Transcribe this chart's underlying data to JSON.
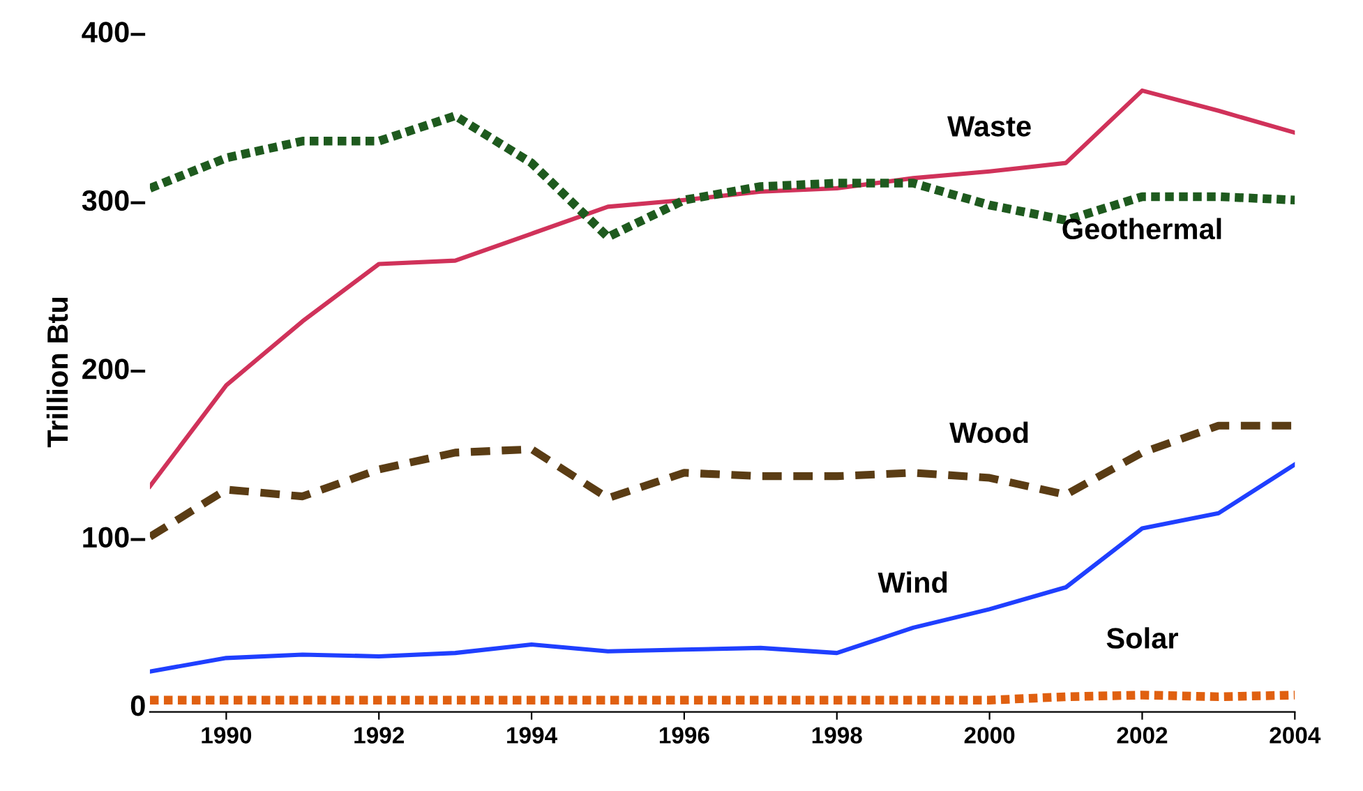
{
  "chart_data": {
    "type": "line",
    "ylabel": "Trillion Btu",
    "x": [
      1989,
      1990,
      1991,
      1992,
      1993,
      1994,
      1995,
      1996,
      1997,
      1998,
      1999,
      2000,
      2001,
      2002,
      2003,
      2004
    ],
    "xlim": [
      1989,
      2004
    ],
    "xticks": [
      1990,
      1992,
      1994,
      1996,
      1998,
      2000,
      2002,
      2004
    ],
    "ylim": [
      -4,
      400
    ],
    "yticks": [
      {
        "value": 0,
        "label": "0"
      },
      {
        "value": 100,
        "label": "100–"
      },
      {
        "value": 200,
        "label": "200–"
      },
      {
        "value": 300,
        "label": "300–"
      },
      {
        "value": 400,
        "label": "400–"
      }
    ],
    "grid": false,
    "legend": false,
    "marker": "none",
    "series": [
      {
        "name": "Waste",
        "color": "#d0325a",
        "line_style": "solid",
        "values": [
          130,
          190,
          228,
          262,
          264,
          280,
          296,
          300,
          305,
          307,
          313,
          317,
          322,
          365,
          353,
          340
        ]
      },
      {
        "name": "Geothermal",
        "color": "#1e5a1e",
        "line_style": "dotted",
        "values": [
          307,
          325,
          335,
          335,
          350,
          322,
          278,
          300,
          308,
          310,
          310,
          297,
          288,
          302,
          302,
          300
        ]
      },
      {
        "name": "Wood",
        "color": "#5a3c14",
        "line_style": "dashed",
        "values": [
          100,
          128,
          124,
          140,
          150,
          152,
          123,
          138,
          136,
          136,
          138,
          135,
          125,
          150,
          166,
          166
        ]
      },
      {
        "name": "Wind",
        "color": "#1f3fff",
        "line_style": "solid",
        "values": [
          20,
          28,
          30,
          29,
          31,
          36,
          32,
          33,
          34,
          31,
          46,
          57,
          70,
          105,
          114,
          143
        ]
      },
      {
        "name": "Solar",
        "color": "#e06010",
        "line_style": "dotted",
        "values": [
          3,
          3,
          3,
          3,
          3,
          3,
          3,
          3,
          3,
          3,
          3,
          3,
          5,
          6,
          5,
          6
        ]
      }
    ]
  }
}
